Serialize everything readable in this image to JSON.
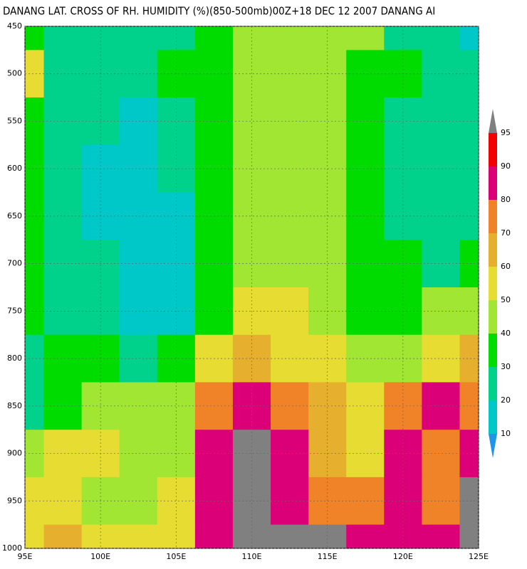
{
  "chart_data": {
    "type": "contour",
    "title": "DANANG LAT. CROSS OF RH. HUMIDITY (%)(850-500mb)00Z+18 DEC 12 2007 DANANG AI",
    "x": [
      95,
      97.5,
      100,
      102.5,
      105,
      107.5,
      110,
      112.5,
      115,
      117.5,
      120,
      122.5,
      125
    ],
    "y": [
      450,
      500,
      550,
      600,
      650,
      700,
      750,
      800,
      850,
      900,
      950,
      1000
    ],
    "z": [
      [
        35,
        25,
        25,
        25,
        25,
        35,
        45,
        45,
        45,
        45,
        25,
        25,
        15
      ],
      [
        55,
        25,
        25,
        25,
        35,
        35,
        45,
        45,
        45,
        35,
        35,
        25,
        25
      ],
      [
        35,
        25,
        25,
        15,
        25,
        35,
        45,
        45,
        45,
        35,
        25,
        25,
        25
      ],
      [
        35,
        25,
        15,
        15,
        25,
        35,
        45,
        45,
        45,
        35,
        25,
        25,
        25
      ],
      [
        35,
        25,
        15,
        15,
        15,
        35,
        45,
        45,
        45,
        35,
        25,
        25,
        25
      ],
      [
        35,
        25,
        25,
        15,
        15,
        35,
        45,
        45,
        45,
        35,
        35,
        25,
        35
      ],
      [
        35,
        25,
        25,
        15,
        15,
        35,
        55,
        55,
        45,
        35,
        35,
        45,
        45
      ],
      [
        25,
        35,
        35,
        25,
        35,
        55,
        65,
        55,
        55,
        45,
        45,
        55,
        65
      ],
      [
        25,
        35,
        45,
        45,
        45,
        75,
        85,
        75,
        65,
        55,
        75,
        85,
        75
      ],
      [
        45,
        55,
        55,
        45,
        45,
        85,
        95,
        85,
        65,
        55,
        85,
        75,
        85
      ],
      [
        55,
        55,
        45,
        45,
        55,
        85,
        95,
        85,
        75,
        75,
        85,
        75,
        95
      ],
      [
        55,
        65,
        55,
        55,
        55,
        85,
        95,
        95,
        95,
        85,
        85,
        85,
        95
      ]
    ],
    "xlim": [
      95,
      125
    ],
    "ylim": [
      1000,
      450
    ],
    "xticks": [
      {
        "value": 95,
        "label": "95E"
      },
      {
        "value": 100,
        "label": "100E"
      },
      {
        "value": 105,
        "label": "105E"
      },
      {
        "value": 110,
        "label": "110E"
      },
      {
        "value": 115,
        "label": "115E"
      },
      {
        "value": 120,
        "label": "120E"
      },
      {
        "value": 125,
        "label": "125E"
      }
    ],
    "yticks": [
      450,
      500,
      550,
      600,
      650,
      700,
      750,
      800,
      850,
      900,
      950,
      1000
    ],
    "grid": true,
    "levels": [
      10,
      20,
      30,
      40,
      50,
      60,
      70,
      80,
      90,
      95
    ],
    "colors": [
      "#1e96e6",
      "#00c8c8",
      "#00d28c",
      "#00dc00",
      "#a0e632",
      "#e6dc32",
      "#e6af2d",
      "#f08228",
      "#dc0078",
      "#f00000",
      "#808080"
    ]
  }
}
